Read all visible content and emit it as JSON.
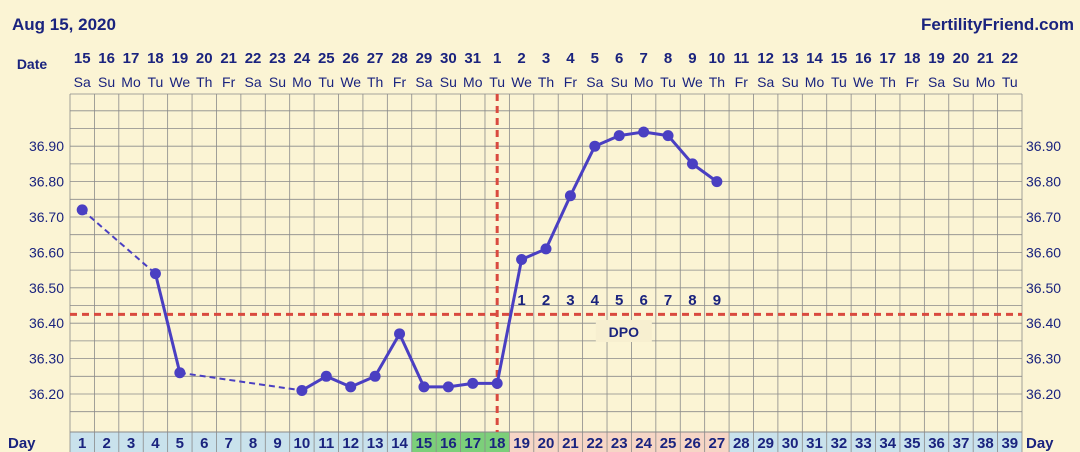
{
  "header": {
    "title": "Aug 15, 2020",
    "brand": "FertilityFriend.com"
  },
  "labels": {
    "date": "Date",
    "day": "Day",
    "dpo": "DPO"
  },
  "colors": {
    "background": "#fbf4d4",
    "grid": "#8a8a8a",
    "line": "#4a3fc2",
    "marker": "#d94a3f",
    "day_green": "#7ccf7a",
    "day_pink": "#f6d6c6",
    "day_blue": "#c9e2ec",
    "text": "#1a237e"
  },
  "chart_data": {
    "type": "line",
    "dates": [
      "15",
      "16",
      "17",
      "18",
      "19",
      "20",
      "21",
      "22",
      "23",
      "24",
      "25",
      "26",
      "27",
      "28",
      "29",
      "30",
      "31",
      "1",
      "2",
      "3",
      "4",
      "5",
      "6",
      "7",
      "8",
      "9",
      "10",
      "11",
      "12",
      "13",
      "14",
      "15",
      "16",
      "17",
      "18",
      "19",
      "20",
      "21",
      "22"
    ],
    "weekdays": [
      "Sa",
      "Su",
      "Mo",
      "Tu",
      "We",
      "Th",
      "Fr",
      "Sa",
      "Su",
      "Mo",
      "Tu",
      "We",
      "Th",
      "Fr",
      "Sa",
      "Su",
      "Mo",
      "Tu",
      "We",
      "Th",
      "Fr",
      "Sa",
      "Su",
      "Mo",
      "Tu",
      "We",
      "Th",
      "Fr",
      "Sa",
      "Su",
      "Mo",
      "Tu",
      "We",
      "Th",
      "Fr",
      "Sa",
      "Su",
      "Mo",
      "Tu"
    ],
    "days": [
      "1",
      "2",
      "3",
      "4",
      "5",
      "6",
      "7",
      "8",
      "9",
      "10",
      "11",
      "12",
      "13",
      "14",
      "15",
      "16",
      "17",
      "18",
      "19",
      "20",
      "21",
      "22",
      "23",
      "24",
      "25",
      "26",
      "27",
      "28",
      "29",
      "30",
      "31",
      "32",
      "33",
      "34",
      "35",
      "36",
      "37",
      "38",
      "39"
    ],
    "ytick_labels": [
      "36.90",
      "36.80",
      "36.70",
      "36.60",
      "36.50",
      "36.40",
      "36.30",
      "36.20"
    ],
    "y_ticks": [
      36.9,
      36.8,
      36.7,
      36.6,
      36.5,
      36.4,
      36.3,
      36.2
    ],
    "ylim": [
      36.12,
      37.05
    ],
    "points": [
      {
        "day": 1,
        "temp": 36.72
      },
      {
        "day": 4,
        "temp": 36.54
      },
      {
        "day": 5,
        "temp": 36.26
      },
      {
        "day": 10,
        "temp": 36.21
      },
      {
        "day": 11,
        "temp": 36.25
      },
      {
        "day": 12,
        "temp": 36.22
      },
      {
        "day": 13,
        "temp": 36.25
      },
      {
        "day": 14,
        "temp": 36.37
      },
      {
        "day": 15,
        "temp": 36.22
      },
      {
        "day": 16,
        "temp": 36.22
      },
      {
        "day": 17,
        "temp": 36.23
      },
      {
        "day": 18,
        "temp": 36.23
      },
      {
        "day": 19,
        "temp": 36.58
      },
      {
        "day": 20,
        "temp": 36.61
      },
      {
        "day": 21,
        "temp": 36.76
      },
      {
        "day": 22,
        "temp": 36.9
      },
      {
        "day": 23,
        "temp": 36.93
      },
      {
        "day": 24,
        "temp": 36.94
      },
      {
        "day": 25,
        "temp": 36.93
      },
      {
        "day": 26,
        "temp": 36.85
      },
      {
        "day": 27,
        "temp": 36.8
      }
    ],
    "dashed_segments": [
      [
        1,
        4
      ],
      [
        5,
        10
      ]
    ],
    "coverline": 36.425,
    "ovulation_day": 18,
    "dpo_labels": [
      "1",
      "2",
      "3",
      "4",
      "5",
      "6",
      "7",
      "8",
      "9"
    ],
    "green_days": [
      15,
      16,
      17,
      18
    ],
    "pink_days": [
      19,
      20,
      21,
      22,
      23,
      24,
      25,
      26,
      27
    ],
    "grid": true
  }
}
